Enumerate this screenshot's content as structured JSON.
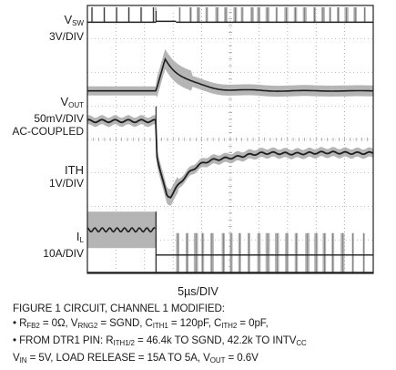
{
  "chart_data": {
    "type": "oscilloscope",
    "time_per_div": "5µs/DIV",
    "grid": true,
    "grid_divisions": {
      "x": 10,
      "y": 8
    },
    "load_step_time_div": 2.4,
    "channels": [
      {
        "key": "vsw",
        "label": "V",
        "label_sub": "SW",
        "scale": "3V/DIV",
        "label_lines": [
          "3V/DIV"
        ],
        "waveform": "switching",
        "baseline_div": 7.5,
        "high_div": 8.55
      },
      {
        "key": "vout",
        "label": "V",
        "label_sub": "OUT",
        "scale": "50mV/DIV",
        "label_lines": [
          "50mV/DIV",
          "AC-COUPLED"
        ],
        "waveform": "overshoot",
        "baseline_div": 5.45,
        "peak_div": 6.45
      },
      {
        "key": "ith",
        "label": "ITH",
        "label_sub": "",
        "scale": "1V/DIV",
        "label_lines": [
          "1V/DIV"
        ],
        "waveform": "undershoot",
        "baseline_div": 3.6,
        "start_div": 4.55,
        "trough_div": 2.35
      },
      {
        "key": "il",
        "label": "I",
        "label_sub": "L",
        "scale": "10A/DIV",
        "label_lines": [
          "10A/DIV"
        ],
        "waveform": "step-down",
        "before_div": 1.3,
        "after_div": 0.55
      }
    ]
  },
  "figure_notes": {
    "line1": "FIGURE 1 CIRCUIT, CHANNEL 1 MODIFIED:",
    "line2_parts": [
      "• R",
      "FB2",
      " = 0Ω, V",
      "RNG2",
      " = SGND, C",
      "ITH1",
      " = 120pF, C",
      "ITH2",
      " = 0pF,"
    ],
    "line3_parts": [
      "• FROM DTR1 PIN: R",
      "ITH1/2",
      " = 46.4k TO SGND, 42.2k TO INTV",
      "CC"
    ],
    "line4_parts": [
      "V",
      "IN",
      " = 5V, LOAD RELEASE = 15A TO 5A, V",
      "OUT",
      " = 0.6V"
    ]
  },
  "colors": {
    "screen_bg": "#ffffff",
    "grid": "#888888",
    "trace_envelope": "#b5b5b5",
    "trace_core": "#1e1e1e",
    "border": "#222222"
  }
}
